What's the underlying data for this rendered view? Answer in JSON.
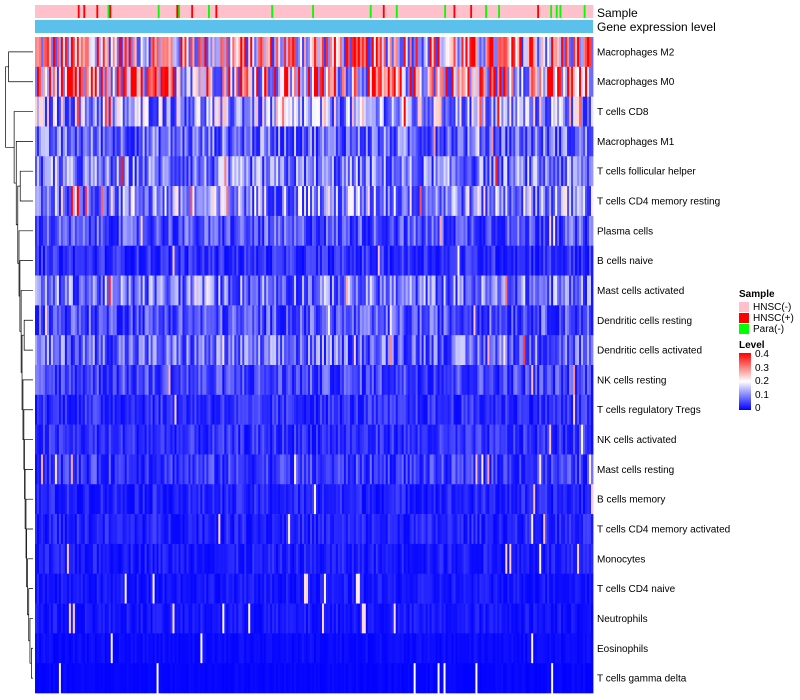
{
  "chart_data": {
    "type": "heatmap",
    "title": "",
    "annotations": [
      {
        "name": "Sample",
        "categories": [
          "HNSC(-)",
          "HNSC(+)",
          "Para(-)"
        ],
        "colors": [
          "#ffc0cb",
          "#ff0000",
          "#00ff00"
        ]
      },
      {
        "name": "Gene expression level",
        "color": "#5bc0eb"
      }
    ],
    "rows": [
      {
        "label": "Macrophages M2",
        "mean": 0.26
      },
      {
        "label": "Macrophages M0",
        "mean": 0.27
      },
      {
        "label": "T cells CD8",
        "mean": 0.14
      },
      {
        "label": "Macrophages M1",
        "mean": 0.09
      },
      {
        "label": "T cells follicular helper",
        "mean": 0.1
      },
      {
        "label": "T cells CD4 memory resting",
        "mean": 0.13
      },
      {
        "label": "Plasma cells",
        "mean": 0.07
      },
      {
        "label": "B cells naive",
        "mean": 0.04
      },
      {
        "label": "Mast cells activated",
        "mean": 0.1
      },
      {
        "label": "Dendritic cells resting",
        "mean": 0.07
      },
      {
        "label": "Dendritic cells activated",
        "mean": 0.09
      },
      {
        "label": "NK cells resting",
        "mean": 0.06
      },
      {
        "label": "T cells regulatory  Tregs",
        "mean": 0.04
      },
      {
        "label": "NK cells activated",
        "mean": 0.04
      },
      {
        "label": "Mast cells resting",
        "mean": 0.05
      },
      {
        "label": "B cells memory",
        "mean": 0.03
      },
      {
        "label": "T cells CD4 memory activated",
        "mean": 0.03
      },
      {
        "label": "Monocytes",
        "mean": 0.025
      },
      {
        "label": "T cells CD4 naive",
        "mean": 0.02
      },
      {
        "label": "Neutrophils",
        "mean": 0.02
      },
      {
        "label": "Eosinophils",
        "mean": 0.01
      },
      {
        "label": "T cells gamma delta",
        "mean": 0.005
      }
    ],
    "color_scale": {
      "min": 0,
      "max": 0.4,
      "low": "#0000ff",
      "mid": "#ffffff",
      "mid_value": 0.2,
      "high": "#ff0000"
    },
    "legend": {
      "placement": "right",
      "sample_title": "Sample",
      "sample_items": [
        "HNSC(-)",
        "HNSC(+)",
        "Para(-)"
      ],
      "level_title": "Level",
      "level_ticks": [
        "0.4",
        "0.3",
        "0.2",
        "0.1",
        "0"
      ]
    },
    "dendrogram": "rows-left"
  }
}
